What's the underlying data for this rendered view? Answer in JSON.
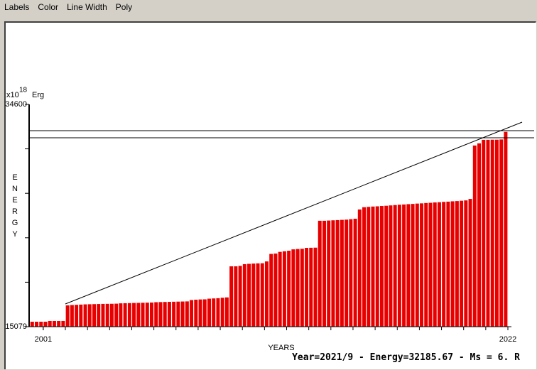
{
  "menu": [
    "Labels",
    "Color",
    "Line Width",
    "Poly"
  ],
  "status": "Year=2021/9 - Energy=32185.67 - Ms = 6. R",
  "chart_data": {
    "type": "bar",
    "y_unit_base": "x10",
    "y_unit_exponent": "18",
    "y_unit": "Erg",
    "ylabel": "ENERGY",
    "xlabel": "YEARS",
    "color": "#e80000",
    "ylim": [
      15079,
      34600
    ],
    "yticks": [
      15079,
      34600
    ],
    "xlim": [
      2000.33,
      2022.16
    ],
    "xticks": [
      2001,
      2022
    ],
    "x": [
      2000.5,
      2000.7,
      2000.9,
      2001.1,
      2001.3,
      2001.5,
      2001.7,
      2001.9,
      2002.1,
      2002.3,
      2002.5,
      2002.7,
      2002.9,
      2003.1,
      2003.3,
      2003.5,
      2003.7,
      2003.9,
      2004.1,
      2004.3,
      2004.5,
      2004.7,
      2004.9,
      2005.1,
      2005.3,
      2005.5,
      2005.7,
      2005.9,
      2006.1,
      2006.3,
      2006.5,
      2006.7,
      2006.9,
      2007.1,
      2007.3,
      2007.5,
      2007.7,
      2007.9,
      2008.1,
      2008.3,
      2008.5,
      2008.7,
      2008.9,
      2009.1,
      2009.3,
      2009.5,
      2009.7,
      2009.9,
      2010.1,
      2010.3,
      2010.5,
      2010.7,
      2010.9,
      2011.1,
      2011.3,
      2011.5,
      2011.7,
      2011.9,
      2012.1,
      2012.3,
      2012.5,
      2012.7,
      2012.9,
      2013.1,
      2013.3,
      2013.5,
      2013.7,
      2013.9,
      2014.1,
      2014.3,
      2014.5,
      2014.7,
      2014.9,
      2015.1,
      2015.3,
      2015.5,
      2015.7,
      2015.9,
      2016.1,
      2016.3,
      2016.5,
      2016.7,
      2016.9,
      2017.1,
      2017.3,
      2017.5,
      2017.7,
      2017.9,
      2018.1,
      2018.3,
      2018.5,
      2018.7,
      2018.9,
      2019.1,
      2019.3,
      2019.5,
      2019.7,
      2019.9,
      2020.1,
      2020.3,
      2020.5,
      2020.7,
      2020.9,
      2021.1,
      2021.3,
      2021.5,
      2021.7,
      2021.9
    ],
    "values": [
      15516,
      15516,
      15516,
      15516,
      15580,
      15580,
      15580,
      15580,
      16950,
      16980,
      17000,
      17020,
      17040,
      17050,
      17060,
      17070,
      17080,
      17085,
      17090,
      17100,
      17130,
      17140,
      17150,
      17160,
      17170,
      17180,
      17190,
      17200,
      17230,
      17240,
      17250,
      17260,
      17270,
      17280,
      17290,
      17300,
      17420,
      17450,
      17470,
      17480,
      17540,
      17560,
      17580,
      17620,
      17650,
      20380,
      20380,
      20420,
      20570,
      20600,
      20620,
      20640,
      20650,
      20810,
      21470,
      21500,
      21650,
      21700,
      21750,
      21870,
      21900,
      21920,
      22000,
      22010,
      22020,
      24380,
      24380,
      24400,
      24420,
      24440,
      24460,
      24480,
      24520,
      24560,
      25370,
      25570,
      25600,
      25630,
      25650,
      25680,
      25700,
      25730,
      25760,
      25790,
      25810,
      25840,
      25860,
      25890,
      25910,
      25940,
      25960,
      25990,
      26010,
      26040,
      26060,
      26090,
      26110,
      26140,
      26170,
      26300,
      30990,
      31180,
      31490,
      31490,
      31500,
      31500,
      31520,
      32186
    ]
  }
}
